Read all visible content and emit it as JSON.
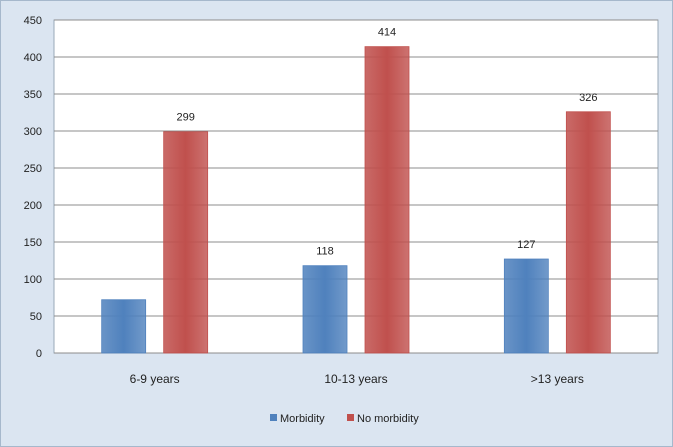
{
  "chart_data": {
    "type": "bar",
    "categories": [
      "6-9 years",
      "10-13 years",
      ">13 years"
    ],
    "series": [
      {
        "name": "Morbidity",
        "values": [
          72,
          118,
          127
        ],
        "labels": [
          "",
          "118",
          "127"
        ],
        "color": "#4f81bd"
      },
      {
        "name": "No morbidity",
        "values": [
          299,
          414,
          326
        ],
        "labels": [
          "299",
          "414",
          "326"
        ],
        "color": "#c0504d"
      }
    ],
    "ylim": [
      0,
      450
    ],
    "yticks": [
      0,
      50,
      100,
      150,
      200,
      250,
      300,
      350,
      400,
      450
    ],
    "grid": true,
    "legend_position": "bottom",
    "plot_background": "#ffffff",
    "frame_background": "#dbe5f1"
  }
}
